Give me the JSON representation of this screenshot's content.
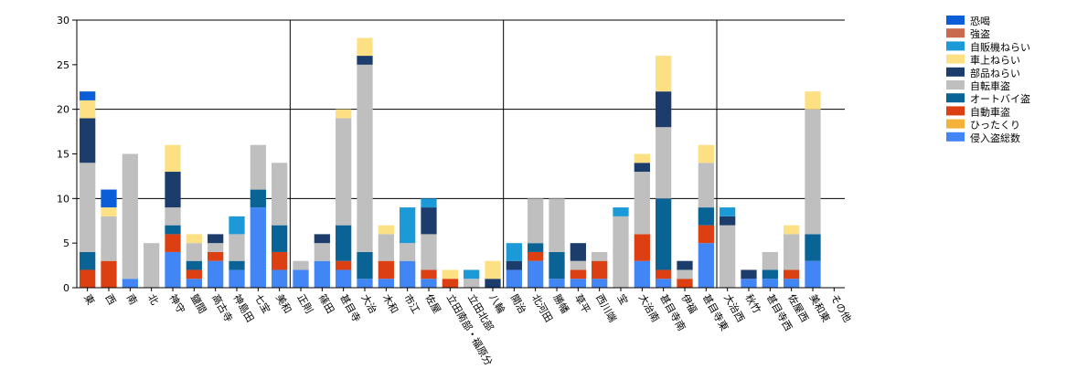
{
  "chart_data": {
    "type": "bar",
    "stacked": true,
    "title": "",
    "xlabel": "",
    "ylabel": "",
    "ylim": [
      0,
      30
    ],
    "yticks": [
      0,
      5,
      10,
      15,
      20,
      25,
      30
    ],
    "grid": "major lines at y=10,20,30 and every 10 categories",
    "legend_position": "top-right",
    "categories": [
      "東",
      "西",
      "南",
      "北",
      "神守",
      "鹽間",
      "高古寺",
      "神島田",
      "七宝",
      "美和",
      "正則",
      "篠田",
      "甚目寺",
      "大治",
      "木和",
      "市江",
      "佐屋",
      "立田南部・福原分",
      "立田北部",
      "八輪",
      "開治",
      "北河田",
      "勝幡",
      "草平",
      "西川端",
      "宝",
      "大治南",
      "甚目寺南",
      "伊福",
      "甚目寺東",
      "大治西",
      "秋竹",
      "甚目寺西",
      "佐屋西",
      "美和東",
      "その他"
    ],
    "series": [
      {
        "name": "侵入盗総数",
        "color": "#4285f4",
        "values": [
          0,
          0,
          1,
          0,
          4,
          1,
          3,
          2,
          9,
          2,
          2,
          3,
          2,
          1,
          1,
          3,
          1,
          0,
          0,
          0,
          2,
          3,
          1,
          1,
          1,
          0,
          3,
          1,
          0,
          5,
          0,
          1,
          1,
          1,
          3,
          0
        ]
      },
      {
        "name": "ひったくり",
        "color": "#f4b23b",
        "values": [
          0,
          0,
          0,
          0,
          0,
          0,
          0,
          0,
          0,
          0,
          0,
          0,
          0,
          0,
          0,
          0,
          0,
          0,
          0,
          0,
          0,
          0,
          0,
          0,
          0,
          0,
          0,
          0,
          0,
          0,
          0,
          0,
          0,
          0,
          0,
          0
        ]
      },
      {
        "name": "自動車盗",
        "color": "#dc3f12",
        "values": [
          2,
          3,
          0,
          0,
          2,
          1,
          1,
          0,
          0,
          2,
          0,
          0,
          1,
          0,
          2,
          0,
          1,
          1,
          0,
          0,
          0,
          1,
          0,
          1,
          2,
          0,
          3,
          1,
          1,
          2,
          0,
          0,
          0,
          1,
          0,
          0
        ]
      },
      {
        "name": "オートバイ盗",
        "color": "#0a6395",
        "values": [
          2,
          0,
          0,
          0,
          1,
          1,
          0,
          1,
          2,
          3,
          0,
          0,
          4,
          3,
          0,
          0,
          0,
          0,
          0,
          0,
          0,
          1,
          3,
          0,
          0,
          0,
          0,
          8,
          0,
          2,
          0,
          0,
          1,
          0,
          3,
          0
        ]
      },
      {
        "name": "自転車盗",
        "color": "#bfbfbf",
        "values": [
          10,
          5,
          14,
          5,
          2,
          2,
          1,
          3,
          5,
          7,
          1,
          2,
          12,
          21,
          3,
          2,
          4,
          0,
          1,
          0,
          0,
          5,
          6,
          1,
          1,
          8,
          7,
          8,
          1,
          5,
          7,
          0,
          2,
          4,
          14,
          0
        ]
      },
      {
        "name": "部品ねらい",
        "color": "#1c3c6b",
        "values": [
          5,
          0,
          0,
          0,
          4,
          0,
          1,
          0,
          0,
          0,
          0,
          1,
          0,
          1,
          0,
          0,
          3,
          0,
          0,
          1,
          1,
          0,
          0,
          2,
          0,
          0,
          1,
          4,
          1,
          0,
          1,
          1,
          0,
          0,
          0,
          0
        ]
      },
      {
        "name": "車上ねらい",
        "color": "#fde083",
        "values": [
          2,
          1,
          0,
          0,
          3,
          1,
          0,
          0,
          0,
          0,
          0,
          0,
          1,
          2,
          1,
          0,
          0,
          1,
          0,
          2,
          0,
          0,
          0,
          0,
          0,
          0,
          1,
          4,
          0,
          2,
          0,
          0,
          0,
          1,
          2,
          0
        ]
      },
      {
        "name": "自販機ねらい",
        "color": "#1b9ad7",
        "values": [
          0,
          0,
          0,
          0,
          0,
          0,
          0,
          2,
          0,
          0,
          0,
          0,
          0,
          0,
          0,
          4,
          1,
          0,
          1,
          0,
          2,
          0,
          0,
          0,
          0,
          1,
          0,
          0,
          0,
          0,
          1,
          0,
          0,
          0,
          0,
          0
        ]
      },
      {
        "name": "強盗",
        "color": "#c96a4f",
        "values": [
          0,
          0,
          0,
          0,
          0,
          0,
          0,
          0,
          0,
          0,
          0,
          0,
          0,
          0,
          0,
          0,
          0,
          0,
          0,
          0,
          0,
          0,
          0,
          0,
          0,
          0,
          0,
          0,
          0,
          0,
          0,
          0,
          0,
          0,
          0,
          0
        ]
      },
      {
        "name": "恐喝",
        "color": "#0b5ed7",
        "values": [
          1,
          2,
          0,
          0,
          0,
          0,
          0,
          0,
          0,
          0,
          0,
          0,
          0,
          0,
          0,
          0,
          0,
          0,
          0,
          0,
          0,
          0,
          0,
          0,
          0,
          0,
          0,
          0,
          0,
          0,
          0,
          0,
          0,
          0,
          0,
          0
        ]
      }
    ],
    "legend_order": [
      "恐喝",
      "強盗",
      "自販機ねらい",
      "車上ねらい",
      "部品ねらい",
      "自転車盗",
      "オートバイ盗",
      "自動車盗",
      "ひったくり",
      "侵入盗総数"
    ]
  }
}
